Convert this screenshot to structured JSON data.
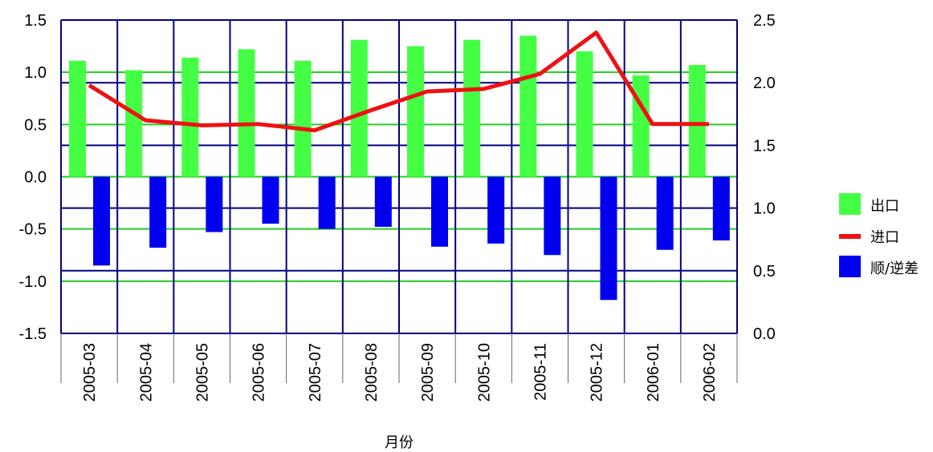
{
  "chart_data": {
    "type": "bar",
    "categories": [
      "2005-03",
      "2005-04",
      "2005-05",
      "2005-06",
      "2005-07",
      "2005-08",
      "2005-09",
      "2005-10",
      "2005-11",
      "2005-12",
      "2006-01",
      "2006-02"
    ],
    "series": [
      {
        "name": "出口",
        "type": "bar",
        "axis": "left",
        "color": "#44ff44",
        "values": [
          1.11,
          1.02,
          1.14,
          1.22,
          1.11,
          1.31,
          1.25,
          1.31,
          1.35,
          1.2,
          0.97,
          1.07
        ]
      },
      {
        "name": "进口",
        "type": "line",
        "axis": "right",
        "color": "#ee1111",
        "values": [
          1.98,
          1.7,
          1.66,
          1.67,
          1.62,
          1.78,
          1.93,
          1.95,
          2.07,
          2.4,
          1.67,
          1.67
        ]
      },
      {
        "name": "顺/逆差",
        "type": "bar",
        "axis": "left",
        "color": "#0000ee",
        "values": [
          -0.85,
          -0.68,
          -0.53,
          -0.45,
          -0.5,
          -0.48,
          -0.67,
          -0.64,
          -0.75,
          -1.18,
          -0.7,
          -0.61
        ]
      }
    ],
    "xlabel": "月份",
    "ylim": [
      -1.5,
      1.5
    ],
    "yticks": [
      "1.5",
      "1.0",
      "0.5",
      "0.0",
      "-0.5",
      "-1.0",
      "-1.5"
    ],
    "y2lim": [
      0.0,
      2.5
    ],
    "y2ticks": [
      "2.5",
      "2.0",
      "1.5",
      "1.0",
      "0.5",
      "0.0"
    ],
    "grid": true,
    "legend": "right"
  },
  "legend": {
    "items": [
      {
        "label": "出口",
        "color": "#44ff44",
        "kind": "box"
      },
      {
        "label": "进口",
        "color": "#ee1111",
        "kind": "line"
      },
      {
        "label": "顺/逆差",
        "color": "#0000ee",
        "kind": "box"
      }
    ]
  }
}
